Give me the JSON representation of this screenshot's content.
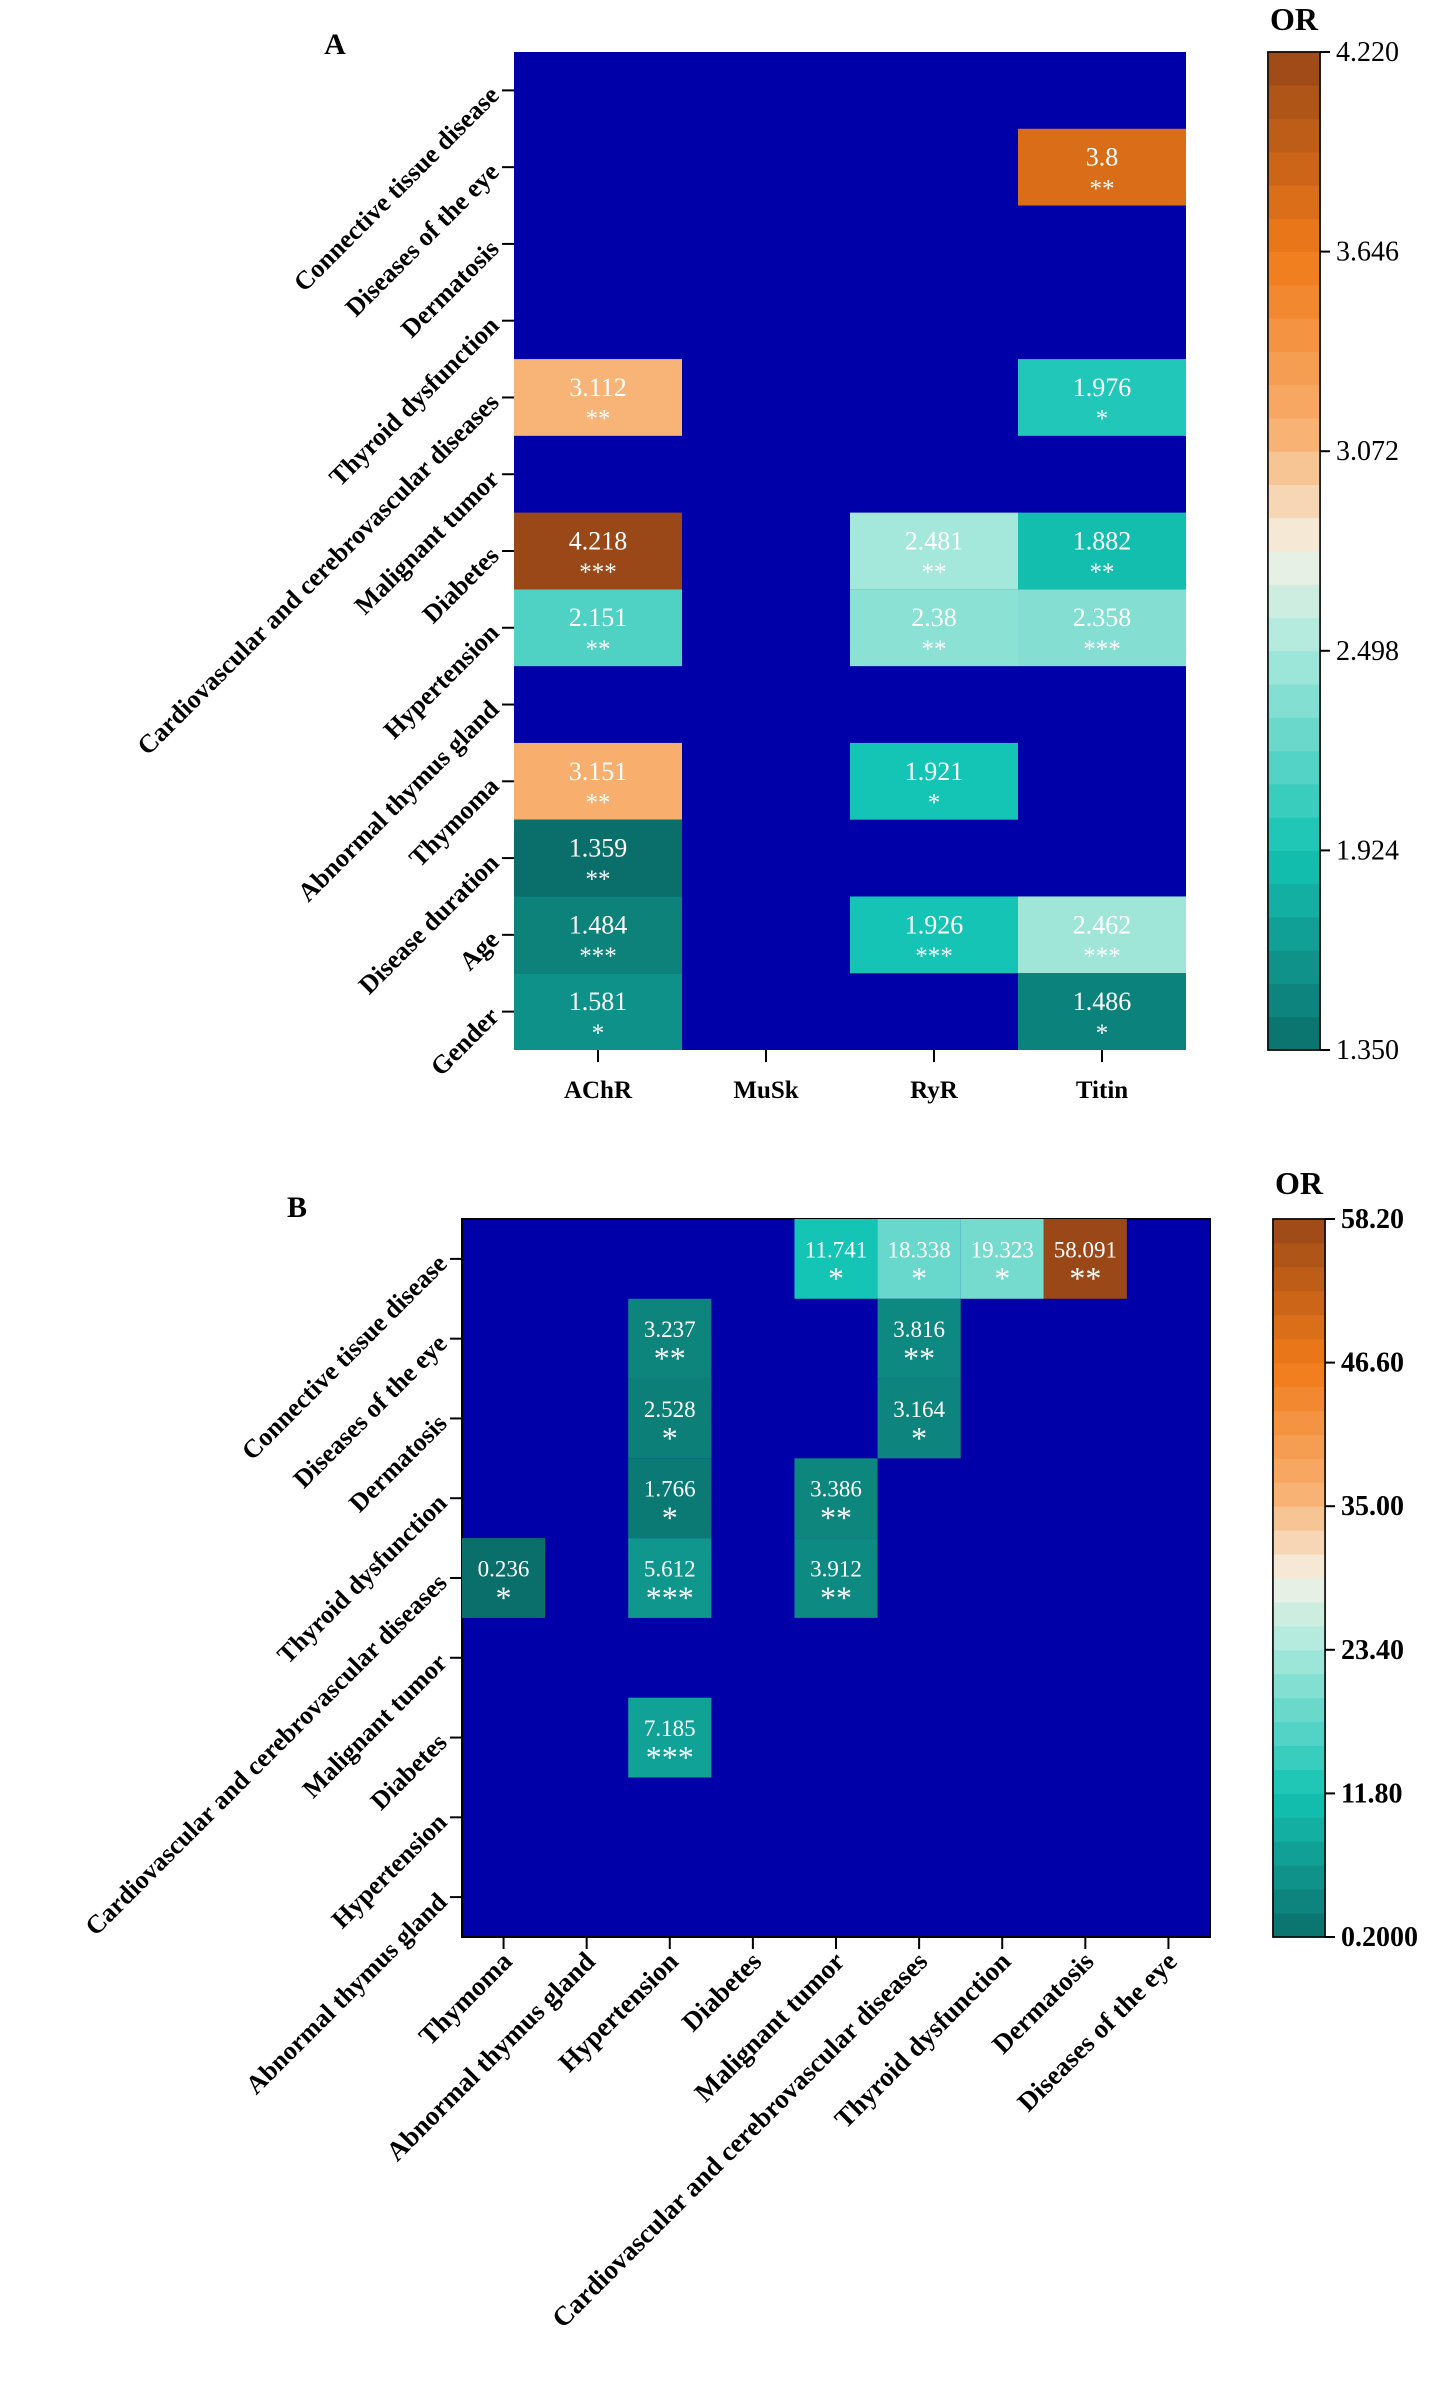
{
  "colors": {
    "background": "#0000a8",
    "low": "#0a6e6a",
    "teal": "#14c4b4",
    "light": "#f4f2e6",
    "peach": "#f8b070",
    "orange": "#f07a18",
    "high": "#9a4818"
  },
  "chart_data": [
    {
      "panel": "A",
      "type": "heatmap",
      "colorbar_title": "OR",
      "colorbar_ticks": [
        "1.350",
        "1.924",
        "2.498",
        "3.072",
        "3.646",
        "4.220"
      ],
      "colorbar_min": 1.35,
      "colorbar_max": 4.22,
      "columns": [
        "AChR",
        "MuSk",
        "RyR",
        "Titin"
      ],
      "rows": [
        "Connective tissue disease",
        "Diseases of the eye",
        "Dermatosis",
        "Thyroid dysfunction",
        "Cardiovascular and cerebrovascular diseases",
        "Malignant tumor",
        "Diabetes",
        "Hypertension",
        "Abnormal thymus gland",
        "Thymoma",
        "Disease duration",
        "Age",
        "Gender"
      ],
      "cells": [
        {
          "row": 1,
          "col": 3,
          "value": 3.8,
          "label": "3.8",
          "sig": "**"
        },
        {
          "row": 4,
          "col": 0,
          "value": 3.112,
          "label": "3.112",
          "sig": "**"
        },
        {
          "row": 4,
          "col": 3,
          "value": 1.976,
          "label": "1.976",
          "sig": "*"
        },
        {
          "row": 6,
          "col": 0,
          "value": 4.218,
          "label": "4.218",
          "sig": "***"
        },
        {
          "row": 6,
          "col": 2,
          "value": 2.481,
          "label": "2.481",
          "sig": "**"
        },
        {
          "row": 6,
          "col": 3,
          "value": 1.882,
          "label": "1.882",
          "sig": "**"
        },
        {
          "row": 7,
          "col": 0,
          "value": 2.151,
          "label": "2.151",
          "sig": "**"
        },
        {
          "row": 7,
          "col": 2,
          "value": 2.38,
          "label": "2.38",
          "sig": "**"
        },
        {
          "row": 7,
          "col": 3,
          "value": 2.358,
          "label": "2.358",
          "sig": "***"
        },
        {
          "row": 9,
          "col": 0,
          "value": 3.151,
          "label": "3.151",
          "sig": "**"
        },
        {
          "row": 9,
          "col": 2,
          "value": 1.921,
          "label": "1.921",
          "sig": "*"
        },
        {
          "row": 10,
          "col": 0,
          "value": 1.359,
          "label": "1.359",
          "sig": "**"
        },
        {
          "row": 11,
          "col": 0,
          "value": 1.484,
          "label": "1.484",
          "sig": "***"
        },
        {
          "row": 11,
          "col": 2,
          "value": 1.926,
          "label": "1.926",
          "sig": "***"
        },
        {
          "row": 11,
          "col": 3,
          "value": 2.462,
          "label": "2.462",
          "sig": "***"
        },
        {
          "row": 12,
          "col": 0,
          "value": 1.581,
          "label": "1.581",
          "sig": "*"
        },
        {
          "row": 12,
          "col": 3,
          "value": 1.486,
          "label": "1.486",
          "sig": "*"
        }
      ]
    },
    {
      "panel": "B",
      "type": "heatmap",
      "colorbar_title": "OR",
      "colorbar_ticks": [
        "0.2000",
        "11.80",
        "23.40",
        "35.00",
        "46.60",
        "58.20"
      ],
      "colorbar_min": 0.2,
      "colorbar_max": 58.2,
      "columns": [
        "Thymoma",
        "Abnormal thymus gland",
        "Hypertension",
        "Diabetes",
        "Malignant tumor",
        "Cardiovascular and cerebrovascular diseases",
        "Thyroid dysfunction",
        "Dermatosis",
        "Diseases of the eye"
      ],
      "rows": [
        "Connective tissue disease",
        "Diseases of the eye",
        "Dermatosis",
        "Thyroid dysfunction",
        "Cardiovascular and cerebrovascular diseases",
        "Malignant tumor",
        "Diabetes",
        "Hypertension",
        "Abnormal thymus gland"
      ],
      "cells": [
        {
          "row": 0,
          "col": 4,
          "value": 11.741,
          "label": "11.741",
          "sig": "*"
        },
        {
          "row": 0,
          "col": 5,
          "value": 18.338,
          "label": "18.338",
          "sig": "*"
        },
        {
          "row": 0,
          "col": 6,
          "value": 19.323,
          "label": "19.323",
          "sig": "*"
        },
        {
          "row": 0,
          "col": 7,
          "value": 58.091,
          "label": "58.091",
          "sig": "**"
        },
        {
          "row": 1,
          "col": 2,
          "value": 3.237,
          "label": "3.237",
          "sig": "**"
        },
        {
          "row": 1,
          "col": 5,
          "value": 3.816,
          "label": "3.816",
          "sig": "**"
        },
        {
          "row": 2,
          "col": 2,
          "value": 2.528,
          "label": "2.528",
          "sig": "*"
        },
        {
          "row": 2,
          "col": 5,
          "value": 3.164,
          "label": "3.164",
          "sig": "*"
        },
        {
          "row": 3,
          "col": 2,
          "value": 1.766,
          "label": "1.766",
          "sig": "*"
        },
        {
          "row": 3,
          "col": 4,
          "value": 3.386,
          "label": "3.386",
          "sig": "**"
        },
        {
          "row": 4,
          "col": 0,
          "value": 0.236,
          "label": "0.236",
          "sig": "*"
        },
        {
          "row": 4,
          "col": 2,
          "value": 5.612,
          "label": "5.612",
          "sig": "***"
        },
        {
          "row": 4,
          "col": 4,
          "value": 3.912,
          "label": "3.912",
          "sig": "**"
        },
        {
          "row": 6,
          "col": 2,
          "value": 7.185,
          "label": "7.185",
          "sig": "***"
        }
      ]
    }
  ]
}
